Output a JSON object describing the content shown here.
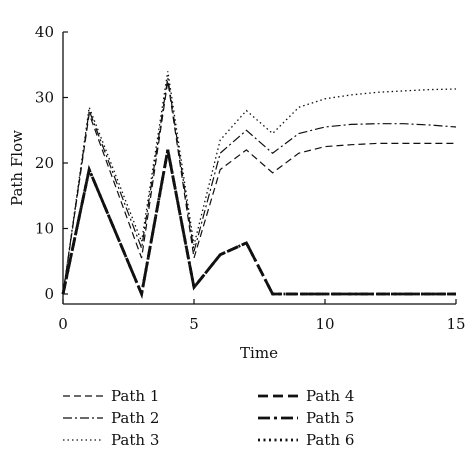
{
  "chart_data": {
    "type": "line",
    "title": "",
    "xlabel": "Time",
    "ylabel": "Path Flow",
    "xlim": [
      0,
      15
    ],
    "ylim": [
      0,
      40
    ],
    "xticks": [
      0,
      5,
      10,
      15
    ],
    "yticks": [
      0,
      10,
      20,
      30,
      40
    ],
    "grid": false,
    "legend_position": "bottom",
    "series": [
      {
        "name": "Path 1",
        "style": "dashed-thin",
        "x": [
          0,
          1,
          3,
          4,
          5,
          6,
          7,
          8,
          9,
          10,
          11,
          12,
          13,
          14,
          15
        ],
        "y": [
          0,
          27.5,
          5.5,
          32.5,
          5.5,
          19,
          22,
          18.5,
          21.5,
          22.5,
          22.8,
          23,
          23,
          23,
          23
        ]
      },
      {
        "name": "Path 2",
        "style": "dashdot-thin",
        "x": [
          0,
          1,
          3,
          4,
          5,
          6,
          7,
          8,
          9,
          10,
          11,
          12,
          13,
          14,
          15
        ],
        "y": [
          0,
          28,
          7,
          33,
          6.5,
          21.5,
          25,
          21.5,
          24.5,
          25.5,
          25.9,
          26,
          26,
          25.8,
          25.5
        ]
      },
      {
        "name": "Path 3",
        "style": "dotted-thin",
        "x": [
          0,
          1,
          3,
          4,
          5,
          6,
          7,
          8,
          9,
          10,
          11,
          12,
          13,
          14,
          15
        ],
        "y": [
          0,
          28.5,
          8,
          34,
          7.5,
          23.5,
          28,
          24.5,
          28.5,
          29.8,
          30.4,
          30.8,
          31,
          31.2,
          31.3
        ]
      },
      {
        "name": "Path 4",
        "style": "dashed-thick",
        "x": [
          0,
          1,
          3,
          4,
          5,
          6,
          7,
          8,
          9,
          10,
          11,
          12,
          13,
          14,
          15
        ],
        "y": [
          0,
          19,
          0,
          22,
          1,
          6,
          7.8,
          0,
          0,
          0,
          0,
          0,
          0,
          0,
          0
        ]
      },
      {
        "name": "Path 5",
        "style": "dashdot-thick",
        "x": [
          0,
          1,
          3,
          4,
          5,
          6,
          7,
          8,
          9,
          10,
          11,
          12,
          13,
          14,
          15
        ],
        "y": [
          0,
          19,
          0,
          22,
          1,
          6,
          7.8,
          0,
          0,
          0,
          0,
          0,
          0,
          0,
          0
        ]
      },
      {
        "name": "Path 6",
        "style": "dotted-thick",
        "x": [
          0,
          1,
          3,
          4,
          5,
          6,
          7,
          8,
          9,
          10,
          11,
          12,
          13,
          14,
          15
        ],
        "y": [
          0,
          19,
          0,
          22,
          1,
          6,
          7.8,
          0,
          0,
          0,
          0,
          0,
          0,
          0,
          0
        ]
      }
    ]
  }
}
